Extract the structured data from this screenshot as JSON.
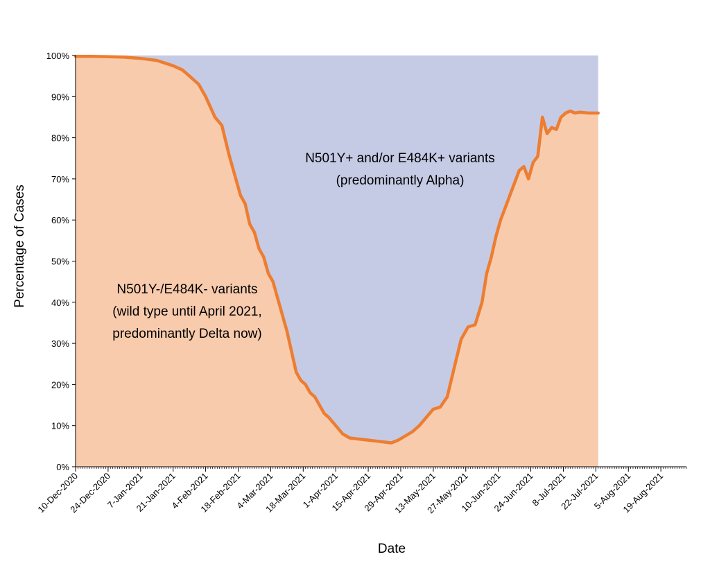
{
  "chart_data": {
    "type": "area",
    "title": "",
    "xlabel": "Date",
    "ylabel": "Percentage of Cases",
    "xlim": [
      "2020-12-10",
      "2021-08-30"
    ],
    "ylim": [
      0,
      100
    ],
    "y_unit": "%",
    "grid": false,
    "legend": "none",
    "y_ticks": [
      "0%",
      "10%",
      "20%",
      "30%",
      "40%",
      "50%",
      "60%",
      "70%",
      "80%",
      "90%",
      "100%"
    ],
    "x_ticks": [
      "10-Dec-2020",
      "24-Dec-2020",
      "7-Jan-2021",
      "21-Jan-2021",
      "4-Feb-2021",
      "18-Feb-2021",
      "4-Mar-2021",
      "18-Mar-2021",
      "1-Apr-2021",
      "15-Apr-2021",
      "29-Apr-2021",
      "13-May-2021",
      "27-May-2021",
      "10-Jun-2021",
      "24-Jun-2021",
      "8-Jul-2021",
      "22-Jul-2021",
      "5-Aug-2021",
      "19-Aug-2021"
    ],
    "colors": {
      "line": "#ED7D31",
      "lower_area": "#F8CBAD",
      "upper_area": "#C5CBE5"
    },
    "annotations": {
      "upper_line1": "N501Y+ and/or E484K+ variants",
      "upper_line2": "(predominantly Alpha)",
      "lower_line1": "N501Y-/E484K- variants",
      "lower_line2": "(wild type until April 2021,",
      "lower_line3": "predominantly Delta now)"
    },
    "series": [
      {
        "x": [
          "2020-12-10",
          "2020-12-17",
          "2020-12-24",
          "2020-12-31",
          "2021-01-07",
          "2021-01-14",
          "2021-01-21",
          "2021-01-25",
          "2021-01-28",
          "2021-02-01",
          "2021-02-04",
          "2021-02-08",
          "2021-02-11",
          "2021-02-14",
          "2021-02-17",
          "2021-02-19",
          "2021-02-21",
          "2021-02-23",
          "2021-02-25",
          "2021-02-27",
          "2021-03-01",
          "2021-03-03",
          "2021-03-05",
          "2021-03-07",
          "2021-03-09",
          "2021-03-11",
          "2021-03-13",
          "2021-03-15",
          "2021-03-17",
          "2021-03-19",
          "2021-03-21",
          "2021-03-23",
          "2021-03-25",
          "2021-03-27",
          "2021-03-29",
          "2021-04-01",
          "2021-04-04",
          "2021-04-07",
          "2021-04-10",
          "2021-04-13",
          "2021-04-16",
          "2021-04-19",
          "2021-04-22",
          "2021-04-25",
          "2021-04-28",
          "2021-05-01",
          "2021-05-04",
          "2021-05-07",
          "2021-05-10",
          "2021-05-13",
          "2021-05-16",
          "2021-05-19",
          "2021-05-22",
          "2021-05-25",
          "2021-05-28",
          "2021-05-31",
          "2021-06-03",
          "2021-06-05",
          "2021-06-07",
          "2021-06-09",
          "2021-06-11",
          "2021-06-13",
          "2021-06-15",
          "2021-06-17",
          "2021-06-19",
          "2021-06-21",
          "2021-06-23",
          "2021-06-25",
          "2021-06-27",
          "2021-06-29",
          "2021-07-01",
          "2021-07-03",
          "2021-07-05",
          "2021-07-07",
          "2021-07-09",
          "2021-07-11",
          "2021-07-13",
          "2021-07-15",
          "2021-07-17",
          "2021-07-19",
          "2021-07-21",
          "2021-07-23"
        ],
        "values": [
          99.8,
          99.8,
          99.7,
          99.6,
          99.3,
          98.8,
          97.5,
          96.5,
          95.0,
          93.0,
          90.0,
          85.0,
          83.0,
          76.0,
          70.0,
          66.0,
          64.0,
          59.0,
          57.0,
          53.0,
          51.0,
          47.0,
          45.0,
          41.0,
          37.0,
          33.0,
          28.0,
          23.0,
          21.0,
          20.0,
          18.0,
          17.0,
          15.0,
          13.0,
          12.0,
          10.0,
          8.0,
          7.0,
          6.8,
          6.6,
          6.4,
          6.2,
          6.0,
          5.8,
          6.5,
          7.5,
          8.5,
          10.0,
          12.0,
          14.0,
          14.5,
          17.0,
          24.0,
          31.0,
          34.0,
          34.5,
          40.0,
          47.0,
          51.0,
          56.0,
          60.0,
          63.0,
          66.0,
          69.0,
          72.0,
          73.0,
          70.0,
          74.0,
          75.5,
          85.0,
          81.0,
          82.5,
          82.0,
          85.0,
          86.0,
          86.5,
          86.0,
          86.2,
          86.1,
          86.0,
          86.0,
          86.0
        ]
      }
    ]
  }
}
